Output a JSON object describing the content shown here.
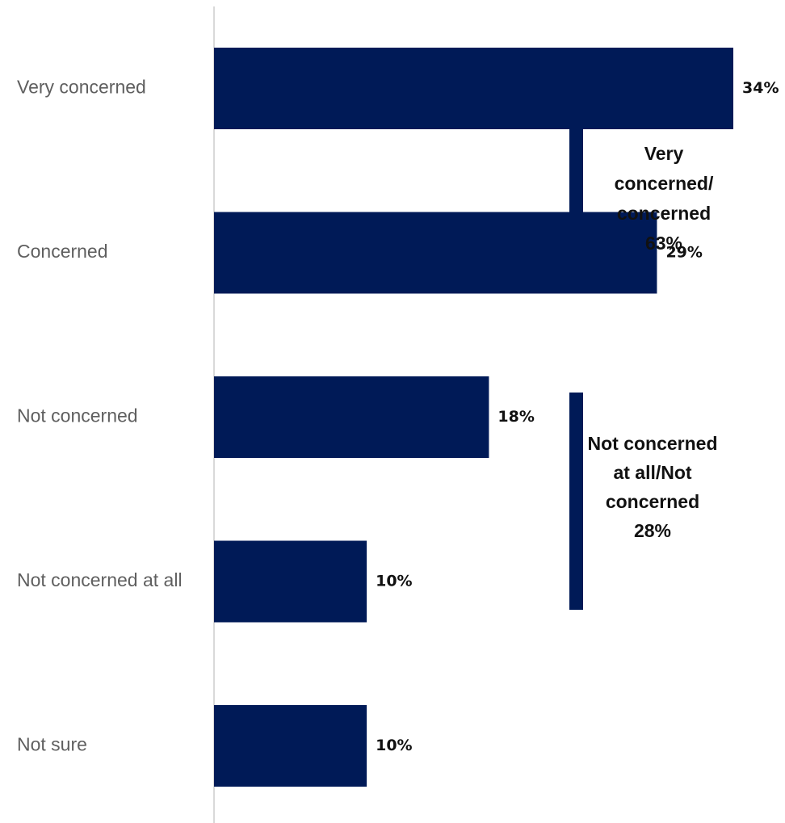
{
  "chart_data": {
    "type": "bar",
    "orientation": "horizontal",
    "categories": [
      "Very concerned",
      "Concerned",
      "Not concerned",
      "Not concerned at all",
      "Not sure"
    ],
    "values": [
      34,
      29,
      18,
      10,
      10
    ],
    "value_labels": [
      "34%",
      "29%",
      "18%",
      "10%",
      "10%"
    ],
    "xlim": [
      0,
      36
    ],
    "grid": false,
    "legend": "none",
    "bar_color": "#001a57",
    "axis_color": "#d9d9d9",
    "groups": [
      {
        "lines": [
          "Very",
          "concerned/",
          "concerned",
          "63%"
        ],
        "categories": [
          "Very concerned",
          "Concerned"
        ],
        "value": 63
      },
      {
        "lines": [
          "Not concerned",
          "at all/Not",
          "concerned",
          "28%"
        ],
        "categories": [
          "Not concerned",
          "Not concerned at all"
        ],
        "value": 28
      }
    ]
  }
}
